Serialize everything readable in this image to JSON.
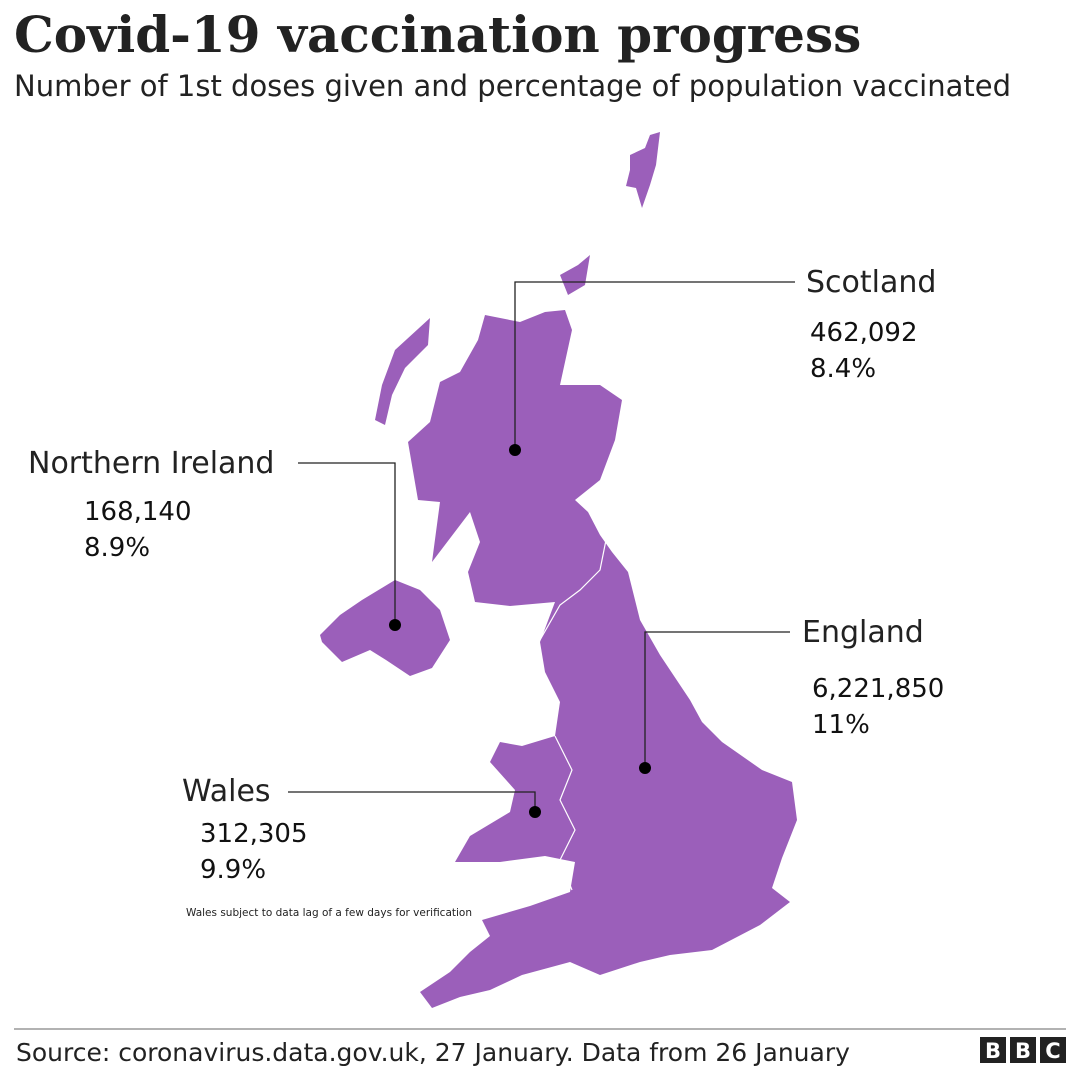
{
  "header": {
    "title": "Covid-19 vaccination progress",
    "subtitle": "Number of 1st doses given and percentage of population vaccinated"
  },
  "regions": [
    {
      "name": "Scotland",
      "doses": "462,092",
      "percent": "8.4%"
    },
    {
      "name": "Northern Ireland",
      "doses": "168,140",
      "percent": "8.9%"
    },
    {
      "name": "England",
      "doses": "6,221,850",
      "percent": "11%"
    },
    {
      "name": "Wales",
      "doses": "312,305",
      "percent": "9.9%"
    }
  ],
  "note": "Wales subject to data lag of a few days for verification",
  "footer": {
    "source": "Source: coronavirus.data.gov.uk, 27 January. Data from 26 January",
    "logo": [
      "B",
      "B",
      "C"
    ]
  }
}
